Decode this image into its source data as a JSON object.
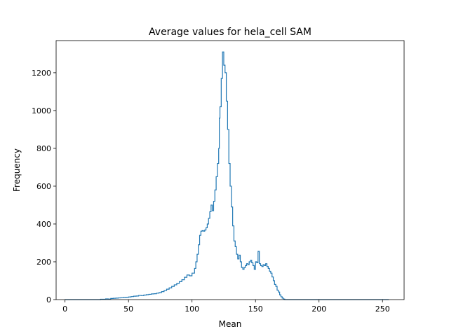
{
  "chart_data": {
    "type": "histogram-step",
    "title": "Average values for hela_cell SAM",
    "xlabel": "Mean",
    "ylabel": "Frequency",
    "xlim": [
      -7,
      267
    ],
    "ylim": [
      0,
      1370
    ],
    "xticks": [
      0,
      50,
      100,
      150,
      200,
      250
    ],
    "yticks": [
      0,
      200,
      400,
      600,
      800,
      1000,
      1200
    ],
    "grid": false,
    "legend": "none",
    "line_color": "#1f77b4",
    "series": [
      {
        "points": [
          [
            0,
            0
          ],
          [
            10,
            0
          ],
          [
            20,
            0
          ],
          [
            28,
            2
          ],
          [
            30,
            2
          ],
          [
            32,
            4
          ],
          [
            34,
            3
          ],
          [
            36,
            6
          ],
          [
            38,
            7
          ],
          [
            40,
            8
          ],
          [
            42,
            9
          ],
          [
            44,
            10
          ],
          [
            46,
            11
          ],
          [
            48,
            12
          ],
          [
            50,
            14
          ],
          [
            52,
            16
          ],
          [
            54,
            18
          ],
          [
            56,
            19
          ],
          [
            58,
            22
          ],
          [
            60,
            21
          ],
          [
            62,
            24
          ],
          [
            64,
            26
          ],
          [
            66,
            28
          ],
          [
            68,
            30
          ],
          [
            70,
            31
          ],
          [
            72,
            34
          ],
          [
            74,
            37
          ],
          [
            76,
            42
          ],
          [
            78,
            48
          ],
          [
            80,
            55
          ],
          [
            82,
            62
          ],
          [
            84,
            70
          ],
          [
            86,
            78
          ],
          [
            88,
            86
          ],
          [
            90,
            95
          ],
          [
            92,
            105
          ],
          [
            94,
            118
          ],
          [
            96,
            130
          ],
          [
            98,
            126
          ],
          [
            100,
            140
          ],
          [
            102,
            165
          ],
          [
            103,
            200
          ],
          [
            104,
            240
          ],
          [
            105,
            290
          ],
          [
            106,
            340
          ],
          [
            107,
            362
          ],
          [
            108,
            365
          ],
          [
            109,
            362
          ],
          [
            110,
            368
          ],
          [
            111,
            380
          ],
          [
            112,
            400
          ],
          [
            113,
            430
          ],
          [
            114,
            465
          ],
          [
            115,
            500
          ],
          [
            116,
            470
          ],
          [
            117,
            520
          ],
          [
            118,
            580
          ],
          [
            119,
            650
          ],
          [
            120,
            720
          ],
          [
            121,
            800
          ],
          [
            121.5,
            960
          ],
          [
            122,
            1020
          ],
          [
            123,
            1170
          ],
          [
            124,
            1310
          ],
          [
            125,
            1240
          ],
          [
            126,
            1200
          ],
          [
            127,
            1050
          ],
          [
            128,
            900
          ],
          [
            129,
            720
          ],
          [
            130,
            600
          ],
          [
            131,
            490
          ],
          [
            132,
            390
          ],
          [
            133,
            310
          ],
          [
            134,
            280
          ],
          [
            135,
            240
          ],
          [
            136,
            215
          ],
          [
            137,
            235
          ],
          [
            138,
            200
          ],
          [
            139,
            170
          ],
          [
            140,
            160
          ],
          [
            141,
            170
          ],
          [
            142,
            180
          ],
          [
            143,
            190
          ],
          [
            144,
            185
          ],
          [
            145,
            200
          ],
          [
            146,
            208
          ],
          [
            147,
            195
          ],
          [
            148,
            180
          ],
          [
            149,
            160
          ],
          [
            150,
            200
          ],
          [
            151,
            195
          ],
          [
            152,
            255
          ],
          [
            153,
            190
          ],
          [
            154,
            180
          ],
          [
            155,
            175
          ],
          [
            156,
            185
          ],
          [
            157,
            180
          ],
          [
            158,
            190
          ],
          [
            159,
            175
          ],
          [
            160,
            165
          ],
          [
            161,
            150
          ],
          [
            162,
            140
          ],
          [
            163,
            120
          ],
          [
            164,
            100
          ],
          [
            165,
            80
          ],
          [
            166,
            70
          ],
          [
            167,
            50
          ],
          [
            168,
            40
          ],
          [
            169,
            25
          ],
          [
            170,
            15
          ],
          [
            171,
            8
          ],
          [
            172,
            3
          ],
          [
            173,
            0
          ],
          [
            180,
            0
          ],
          [
            190,
            0
          ],
          [
            200,
            0
          ],
          [
            210,
            0
          ],
          [
            220,
            0
          ],
          [
            230,
            0
          ],
          [
            240,
            0
          ],
          [
            250,
            0
          ],
          [
            255,
            0
          ]
        ]
      }
    ]
  }
}
